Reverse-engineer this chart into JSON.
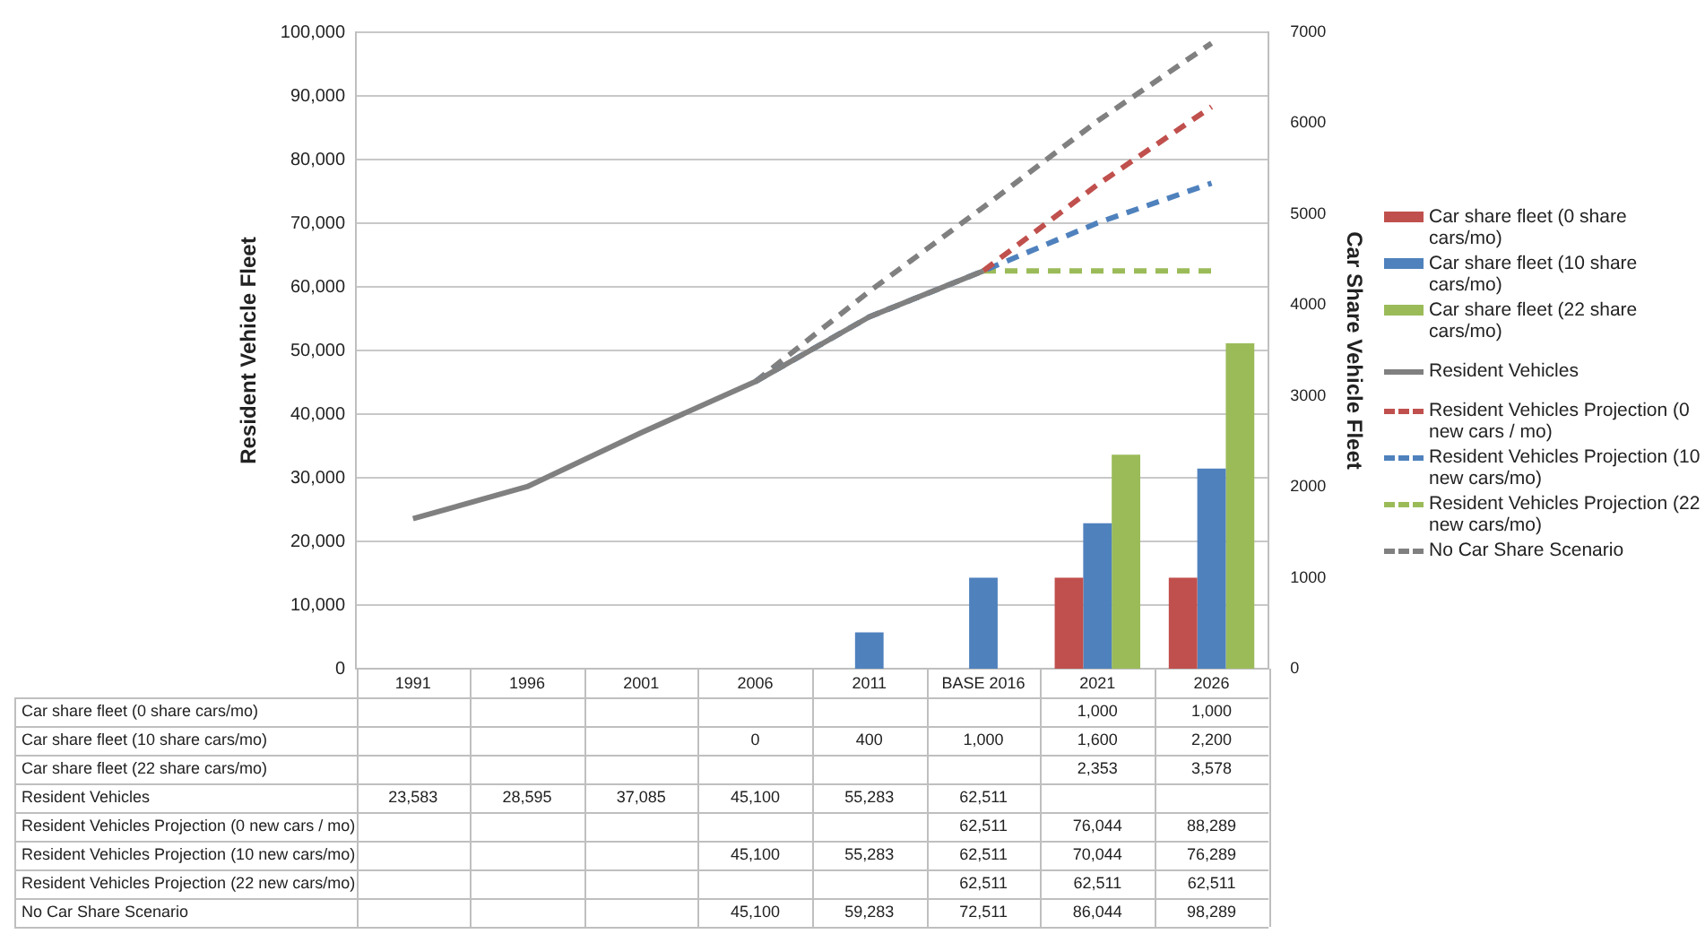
{
  "chart_data": {
    "type": "bar",
    "ylabel": "Resident Vehicle Fleet",
    "y2label": "Car Share Vehicle Fleet",
    "categories": [
      "1991",
      "1996",
      "2001",
      "2006",
      "2011",
      "BASE 2016",
      "2021",
      "2026"
    ],
    "series": [
      {
        "name": "Car share fleet (0 share cars/mo)",
        "axis": "y2",
        "color": "#c0504d",
        "values": [
          null,
          null,
          null,
          null,
          null,
          null,
          1000,
          1000
        ],
        "value_labels": [
          null,
          null,
          null,
          null,
          null,
          null,
          "1,000",
          "1,000"
        ]
      },
      {
        "name": "Car share fleet (10 share cars/mo)",
        "axis": "y2",
        "color": "#4f81bd",
        "values": [
          null,
          null,
          null,
          0,
          400,
          1000,
          1600,
          2200
        ],
        "value_labels": [
          null,
          null,
          null,
          "0",
          "400",
          "1,000",
          "1,600",
          "2,200"
        ]
      },
      {
        "name": "Car share fleet (22 share cars/mo)",
        "axis": "y2",
        "color": "#9bbb59",
        "values": [
          null,
          null,
          null,
          null,
          null,
          null,
          2353,
          3578
        ],
        "value_labels": [
          null,
          null,
          null,
          null,
          null,
          null,
          "2,353",
          "3,578"
        ]
      },
      {
        "name": "Resident Vehicles",
        "type": "line",
        "line_style": "solid",
        "color": "#808080",
        "values": [
          23583,
          28595,
          37085,
          45100,
          55283,
          62511,
          null,
          null
        ],
        "value_labels": [
          "23,583",
          "28,595",
          "37,085",
          "45,100",
          "55,283",
          "62,511",
          null,
          null
        ]
      },
      {
        "name": "Resident Vehicles Projection (0 new cars / mo)",
        "type": "line",
        "line_style": "dashed",
        "color": "#c0504d",
        "values": [
          null,
          null,
          null,
          null,
          null,
          62511,
          76044,
          88289
        ],
        "value_labels": [
          null,
          null,
          null,
          null,
          null,
          "62,511",
          "76,044",
          "88,289"
        ]
      },
      {
        "name": "Resident Vehicles Projection (10 new cars/mo)",
        "type": "line",
        "line_style": "dashed",
        "color": "#4f81bd",
        "values": [
          null,
          null,
          null,
          45100,
          55283,
          62511,
          70044,
          76289
        ],
        "value_labels": [
          null,
          null,
          null,
          "45,100",
          "55,283",
          "62,511",
          "70,044",
          "76,289"
        ]
      },
      {
        "name": "Resident Vehicles Projection (22 new cars/mo)",
        "type": "line",
        "line_style": "dashed",
        "color": "#9bbb59",
        "values": [
          null,
          null,
          null,
          null,
          null,
          62511,
          62511,
          62511
        ],
        "value_labels": [
          null,
          null,
          null,
          null,
          null,
          "62,511",
          "62,511",
          "62,511"
        ]
      },
      {
        "name": "No Car Share Scenario",
        "type": "line",
        "line_style": "dashed",
        "color": "#808080",
        "values": [
          null,
          null,
          null,
          45100,
          59283,
          72511,
          86044,
          98289
        ],
        "value_labels": [
          null,
          null,
          null,
          "45,100",
          "59,283",
          "72,511",
          "86,044",
          "98,289"
        ]
      }
    ],
    "ylim": [
      0,
      100000
    ],
    "yticks": [
      0,
      {
        "value": 10000,
        "label": "10,000"
      },
      {
        "value": 20000,
        "label": "20,000"
      },
      {
        "value": 30000,
        "label": "30,000"
      },
      {
        "value": 40000,
        "label": "40,000"
      },
      {
        "value": 50000,
        "label": "50,000"
      },
      {
        "value": 60000,
        "label": "60,000"
      },
      {
        "value": 70000,
        "label": "70,000"
      },
      {
        "value": 80000,
        "label": "80,000"
      },
      {
        "value": 90000,
        "label": "90,000"
      },
      {
        "value": 100000,
        "label": "100,000"
      }
    ],
    "y2lim": [
      0,
      7000
    ],
    "y2ticks": [
      0,
      1000,
      2000,
      3000,
      4000,
      5000,
      6000,
      7000
    ],
    "grid": "y",
    "legend": "right",
    "marker": "none"
  }
}
